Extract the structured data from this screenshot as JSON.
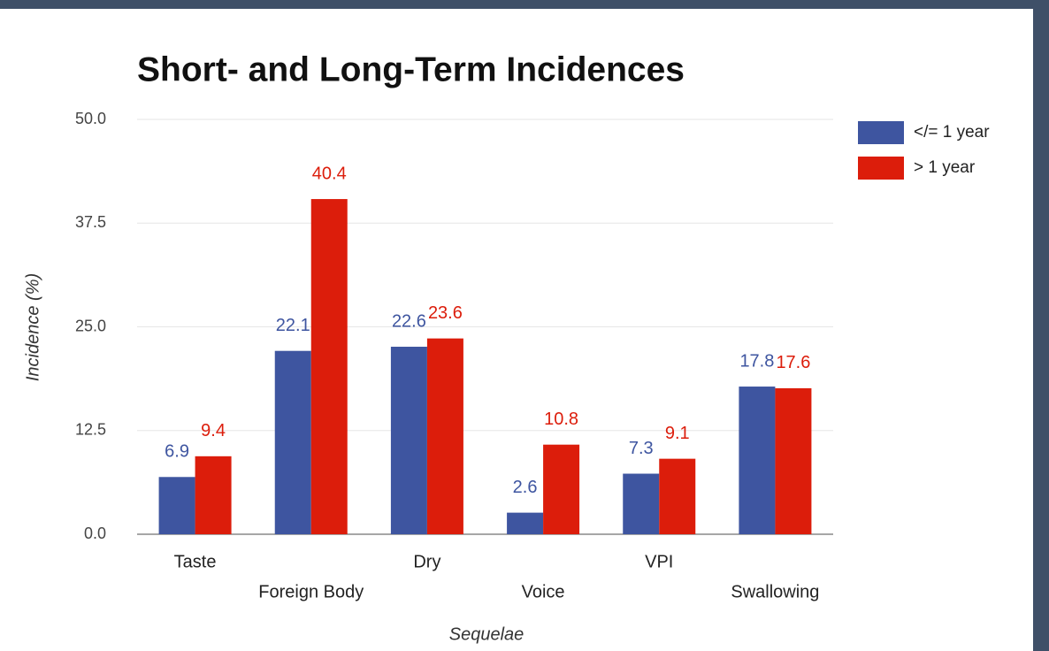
{
  "chart_data": {
    "type": "bar",
    "title": "Short- and Long-Term Incidences",
    "x_label": "Sequelae",
    "y_label": "Incidence (%)",
    "categories": [
      "Taste",
      "Foreign Body",
      "Dry",
      "Voice",
      "VPI",
      "Swallowing"
    ],
    "series": [
      {
        "name": "</= 1 year",
        "color": "#3e55a0",
        "values": [
          6.9,
          22.1,
          22.6,
          2.6,
          7.3,
          17.8
        ]
      },
      {
        "name": "> 1 year",
        "color": "#dc1d0b",
        "values": [
          9.4,
          40.4,
          23.6,
          10.8,
          9.1,
          17.6
        ]
      }
    ],
    "ylim": [
      0,
      50
    ],
    "yticks": [
      {
        "value": 0,
        "label": "0.0"
      },
      12.5,
      {
        "value": 25,
        "label": "25.0"
      },
      37.5,
      {
        "value": 50,
        "label": "50.0"
      }
    ],
    "grid": true,
    "legend": "right",
    "data_labels": true
  }
}
